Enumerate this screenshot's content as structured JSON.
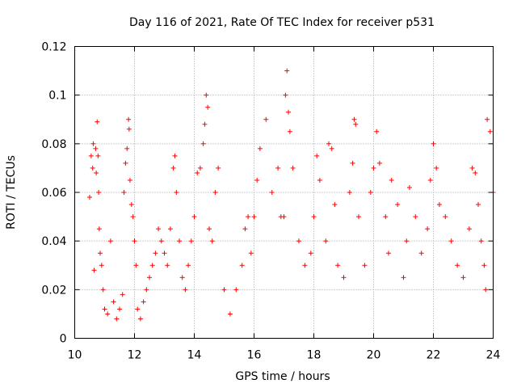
{
  "chart_data": {
    "type": "scatter",
    "title": "Day 116 of 2021, Rate Of TEC Index for receiver p531",
    "xlabel": "GPS time / hours",
    "ylabel": "ROTI / TECUs",
    "xlim": [
      10,
      24
    ],
    "ylim": [
      0,
      0.12
    ],
    "x_ticks": [
      "10",
      "12",
      "14",
      "16",
      "18",
      "20",
      "22",
      "24"
    ],
    "y_ticks": [
      "0",
      "0.02",
      "0.04",
      "0.06",
      "0.08",
      "0.1",
      "0.12"
    ],
    "grid": true,
    "marker": "plus",
    "color": "#ff0000",
    "series": [
      {
        "x": [
          10.5,
          10.55,
          10.6,
          10.62,
          10.65,
          10.7,
          10.72,
          10.75,
          10.78,
          10.8,
          10.82,
          10.85,
          10.9,
          10.95,
          11.0,
          11.1,
          11.2,
          11.3,
          11.4,
          11.5,
          11.6,
          11.65,
          11.7,
          11.75,
          11.8,
          11.82,
          11.85,
          11.9,
          11.95,
          12.0,
          12.05,
          12.1,
          12.2,
          12.3,
          12.4,
          12.5,
          12.6,
          12.7,
          12.8,
          12.9,
          13.0,
          13.1,
          13.2,
          13.3,
          13.35,
          13.4,
          13.5,
          13.6,
          13.7,
          13.8,
          13.9,
          14.0,
          14.1,
          14.2,
          14.3,
          14.35,
          14.4,
          14.45,
          14.5,
          14.6,
          14.7,
          14.8,
          15.0,
          15.2,
          15.4,
          15.6,
          15.7,
          15.8,
          15.9,
          16.0,
          16.1,
          16.2,
          16.4,
          16.6,
          16.8,
          16.9,
          17.0,
          17.05,
          17.1,
          17.15,
          17.2,
          17.3,
          17.5,
          17.7,
          17.9,
          18.0,
          18.1,
          18.2,
          18.4,
          18.5,
          18.6,
          18.7,
          18.8,
          19.0,
          19.2,
          19.3,
          19.35,
          19.4,
          19.5,
          19.7,
          19.9,
          20.0,
          20.1,
          20.2,
          20.4,
          20.5,
          20.6,
          20.8,
          21.0,
          21.1,
          21.2,
          21.4,
          21.6,
          21.8,
          21.9,
          22.0,
          22.1,
          22.2,
          22.4,
          22.6,
          22.8,
          23.0,
          23.2,
          23.3,
          23.4,
          23.5,
          23.6,
          23.7,
          23.75,
          23.8,
          23.9,
          24.0
        ],
        "y": [
          0.058,
          0.075,
          0.07,
          0.08,
          0.028,
          0.078,
          0.068,
          0.089,
          0.075,
          0.06,
          0.045,
          0.035,
          0.03,
          0.02,
          0.012,
          0.01,
          0.04,
          0.015,
          0.008,
          0.012,
          0.018,
          0.06,
          0.072,
          0.078,
          0.09,
          0.086,
          0.065,
          0.055,
          0.05,
          0.04,
          0.03,
          0.012,
          0.008,
          0.015,
          0.02,
          0.025,
          0.03,
          0.035,
          0.045,
          0.04,
          0.035,
          0.03,
          0.045,
          0.07,
          0.075,
          0.06,
          0.04,
          0.025,
          0.02,
          0.03,
          0.04,
          0.05,
          0.068,
          0.07,
          0.08,
          0.088,
          0.1,
          0.095,
          0.045,
          0.04,
          0.06,
          0.07,
          0.02,
          0.01,
          0.02,
          0.03,
          0.045,
          0.05,
          0.035,
          0.05,
          0.065,
          0.078,
          0.09,
          0.06,
          0.07,
          0.05,
          0.05,
          0.1,
          0.11,
          0.093,
          0.085,
          0.07,
          0.04,
          0.03,
          0.035,
          0.05,
          0.075,
          0.065,
          0.04,
          0.08,
          0.078,
          0.055,
          0.03,
          0.025,
          0.06,
          0.072,
          0.09,
          0.088,
          0.05,
          0.03,
          0.06,
          0.07,
          0.085,
          0.072,
          0.05,
          0.035,
          0.065,
          0.055,
          0.025,
          0.04,
          0.062,
          0.05,
          0.035,
          0.045,
          0.065,
          0.08,
          0.07,
          0.055,
          0.05,
          0.04,
          0.03,
          0.025,
          0.045,
          0.07,
          0.068,
          0.055,
          0.04,
          0.03,
          0.02,
          0.09,
          0.085,
          0.06
        ]
      }
    ]
  }
}
